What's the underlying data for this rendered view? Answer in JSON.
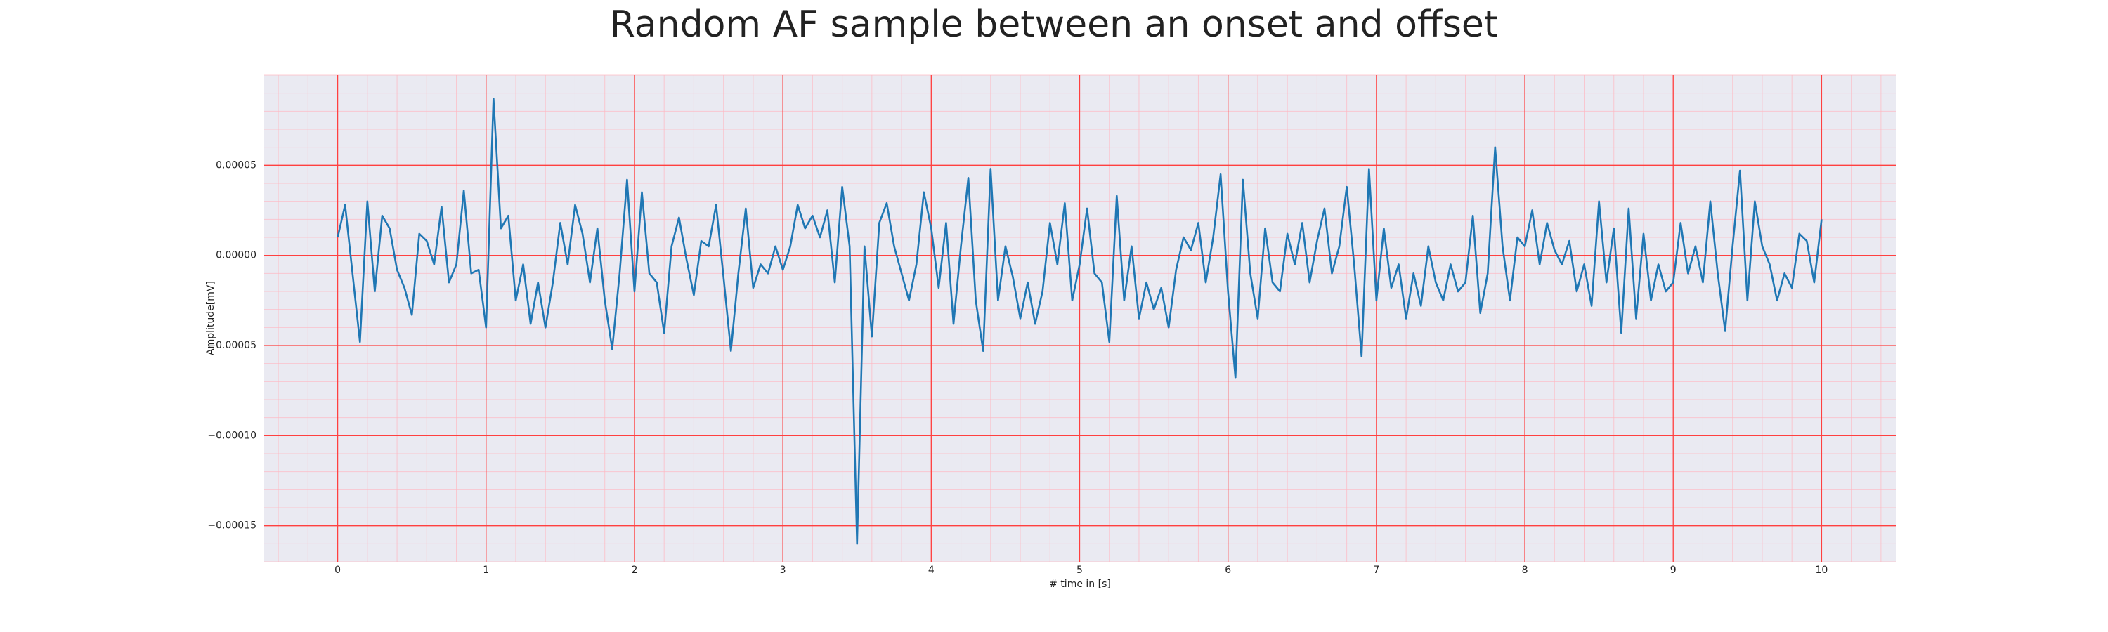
{
  "chart_data": {
    "type": "line",
    "title": "Random AF sample between an onset and offset",
    "xlabel": "# time in [s]",
    "ylabel": "Amplitude[mV]",
    "xlim": [
      -0.5,
      10.5
    ],
    "ylim": [
      -0.00017,
      0.0001
    ],
    "xticks": [
      0,
      1,
      2,
      3,
      4,
      5,
      6,
      7,
      8,
      9,
      10
    ],
    "yticks": [
      {
        "value": -0.00015,
        "label": "−0.00015"
      },
      {
        "value": -0.0001,
        "label": "−0.00010"
      },
      {
        "value": -5e-05,
        "label": "−0.00005"
      },
      {
        "value": 0,
        "label": "0.00000"
      },
      {
        "value": 5e-05,
        "label": "0.00005"
      }
    ],
    "grid": true,
    "minor_grid": true,
    "x": [
      0,
      0.05,
      0.1,
      0.15,
      0.2,
      0.25,
      0.3,
      0.35,
      0.4,
      0.45,
      0.5,
      0.55,
      0.6,
      0.65,
      0.7,
      0.75,
      0.8,
      0.85,
      0.9,
      0.95,
      1,
      1.05,
      1.1,
      1.15,
      1.2,
      1.25,
      1.3,
      1.35,
      1.4,
      1.45,
      1.5,
      1.55,
      1.6,
      1.65,
      1.7,
      1.75,
      1.8,
      1.85,
      1.9,
      1.95,
      2,
      2.05,
      2.1,
      2.15,
      2.2,
      2.25,
      2.3,
      2.35,
      2.4,
      2.45,
      2.5,
      2.55,
      2.6,
      2.65,
      2.7,
      2.75,
      2.8,
      2.85,
      2.9,
      2.95,
      3,
      3.05,
      3.1,
      3.15,
      3.2,
      3.25,
      3.3,
      3.35,
      3.4,
      3.45,
      3.5,
      3.55,
      3.6,
      3.65,
      3.7,
      3.75,
      3.8,
      3.85,
      3.9,
      3.95,
      4,
      4.05,
      4.1,
      4.15,
      4.2,
      4.25,
      4.3,
      4.35,
      4.4,
      4.45,
      4.5,
      4.55,
      4.6,
      4.65,
      4.7,
      4.75,
      4.8,
      4.85,
      4.9,
      4.95,
      5,
      5.05,
      5.1,
      5.15,
      5.2,
      5.25,
      5.3,
      5.35,
      5.4,
      5.45,
      5.5,
      5.55,
      5.6,
      5.65,
      5.7,
      5.75,
      5.8,
      5.85,
      5.9,
      5.95,
      6,
      6.05,
      6.1,
      6.15,
      6.2,
      6.25,
      6.3,
      6.35,
      6.4,
      6.45,
      6.5,
      6.55,
      6.6,
      6.65,
      6.7,
      6.75,
      6.8,
      6.85,
      6.9,
      6.95,
      7,
      7.05,
      7.1,
      7.15,
      7.2,
      7.25,
      7.3,
      7.35,
      7.4,
      7.45,
      7.5,
      7.55,
      7.6,
      7.65,
      7.7,
      7.75,
      7.8,
      7.85,
      7.9,
      7.95,
      8,
      8.05,
      8.1,
      8.15,
      8.2,
      8.25,
      8.3,
      8.35,
      8.4,
      8.45,
      8.5,
      8.55,
      8.6,
      8.65,
      8.7,
      8.75,
      8.8,
      8.85,
      8.9,
      8.95,
      9,
      9.05,
      9.1,
      9.15,
      9.2,
      9.25,
      9.3,
      9.35,
      9.4,
      9.45,
      9.5,
      9.55,
      9.6,
      9.65,
      9.7,
      9.75,
      9.8,
      9.85,
      9.9,
      9.95,
      10
    ],
    "series": [
      {
        "color": "#1f77b4",
        "values": [
          1e-05,
          2.8e-05,
          -1e-05,
          -4.8e-05,
          3e-05,
          -2e-05,
          2.2e-05,
          1.5e-05,
          -8e-06,
          -1.8e-05,
          -3.3e-05,
          1.2e-05,
          8e-06,
          -5e-06,
          2.7e-05,
          -1.5e-05,
          -5e-06,
          3.6e-05,
          -1e-05,
          -8e-06,
          -4e-05,
          8.7e-05,
          1.5e-05,
          2.2e-05,
          -2.5e-05,
          -5e-06,
          -3.8e-05,
          -1.5e-05,
          -4e-05,
          -1.5e-05,
          1.8e-05,
          -5e-06,
          2.8e-05,
          1.2e-05,
          -1.5e-05,
          1.5e-05,
          -2.5e-05,
          -5.2e-05,
          -1e-05,
          4.2e-05,
          -2e-05,
          3.5e-05,
          -1e-05,
          -1.5e-05,
          -4.3e-05,
          5e-06,
          2.1e-05,
          -2e-06,
          -2.2e-05,
          8e-06,
          5e-06,
          2.8e-05,
          -1.2e-05,
          -5.3e-05,
          -1e-05,
          2.6e-05,
          -1.8e-05,
          -5e-06,
          -1e-05,
          5e-06,
          -8e-06,
          5e-06,
          2.8e-05,
          1.5e-05,
          2.2e-05,
          1e-05,
          2.5e-05,
          -1.5e-05,
          3.8e-05,
          5e-06,
          -0.00016,
          5e-06,
          -4.5e-05,
          1.8e-05,
          2.9e-05,
          5e-06,
          -1e-05,
          -2.5e-05,
          -5e-06,
          3.5e-05,
          1.5e-05,
          -1.8e-05,
          1.8e-05,
          -3.8e-05,
          5e-06,
          4.3e-05,
          -2.5e-05,
          -5.3e-05,
          4.8e-05,
          -2.5e-05,
          5e-06,
          -1.2e-05,
          -3.5e-05,
          -1.5e-05,
          -3.8e-05,
          -2e-05,
          1.8e-05,
          -5e-06,
          2.9e-05,
          -2.5e-05,
          -5e-06,
          2.6e-05,
          -1e-05,
          -1.5e-05,
          -4.8e-05,
          3.3e-05,
          -2.5e-05,
          5e-06,
          -3.5e-05,
          -1.5e-05,
          -3e-05,
          -1.8e-05,
          -4e-05,
          -8e-06,
          1e-05,
          3e-06,
          1.8e-05,
          -1.5e-05,
          1e-05,
          4.5e-05,
          -2e-05,
          -6.8e-05,
          4.2e-05,
          -1e-05,
          -3.5e-05,
          1.5e-05,
          -1.5e-05,
          -2e-05,
          1.2e-05,
          -5e-06,
          1.8e-05,
          -1.5e-05,
          8e-06,
          2.6e-05,
          -1e-05,
          5e-06,
          3.8e-05,
          -5e-06,
          -5.6e-05,
          4.8e-05,
          -2.5e-05,
          1.5e-05,
          -1.8e-05,
          -5e-06,
          -3.5e-05,
          -1e-05,
          -2.8e-05,
          5e-06,
          -1.5e-05,
          -2.5e-05,
          -5e-06,
          -2e-05,
          -1.5e-05,
          2.2e-05,
          -3.2e-05,
          -1e-05,
          6e-05,
          5e-06,
          -2.5e-05,
          1e-05,
          5e-06,
          2.5e-05,
          -5e-06,
          1.8e-05,
          3e-06,
          -5e-06,
          8e-06,
          -2e-05,
          -5e-06,
          -2.8e-05,
          3e-05,
          -1.5e-05,
          1.5e-05,
          -4.3e-05,
          2.6e-05,
          -3.5e-05,
          1.2e-05,
          -2.5e-05,
          -5e-06,
          -2e-05,
          -1.5e-05,
          1.8e-05,
          -1e-05,
          5e-06,
          -1.5e-05,
          3e-05,
          -1e-05,
          -4.2e-05,
          5e-06,
          4.7e-05,
          -2.5e-05,
          3e-05,
          5e-06,
          -5e-06,
          -2.5e-05,
          -1e-05,
          -1.8e-05,
          1.2e-05,
          8e-06,
          -1.5e-05,
          2e-05
        ]
      }
    ]
  }
}
